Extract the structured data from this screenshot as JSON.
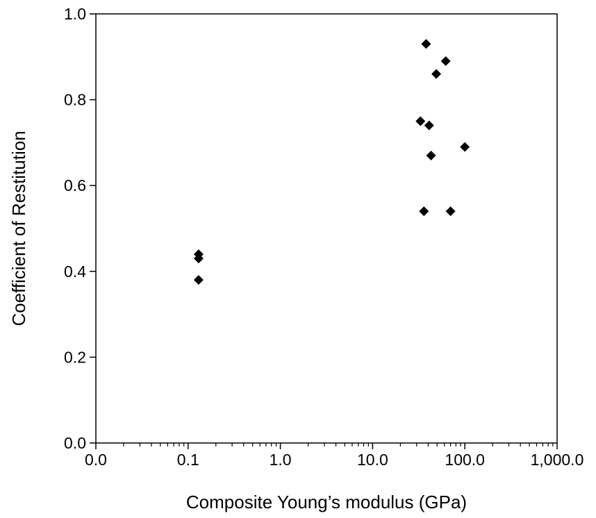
{
  "chart_data": {
    "type": "scatter",
    "title": "",
    "xlabel": "Composite Young’s modulus (GPa)",
    "ylabel": "Coefficient of Restitution",
    "x_scale": "log",
    "xlim": [
      0.01,
      1000
    ],
    "ylim": [
      0.0,
      1.0
    ],
    "x_tick_values": [
      0.01,
      0.1,
      1,
      10,
      100,
      1000
    ],
    "x_tick_labels": [
      "0.0",
      "0.1",
      "1.0",
      "10.0",
      "100.0",
      "1,000.0"
    ],
    "y_tick_values": [
      0.0,
      0.2,
      0.4,
      0.6,
      0.8,
      1.0
    ],
    "y_tick_labels": [
      "0.0",
      "0.2",
      "0.4",
      "0.6",
      "0.8",
      "1.0"
    ],
    "grid": false,
    "legend": "none",
    "marker": "diamond",
    "marker_color": "#000000",
    "series": [
      {
        "x": [
          0.13,
          0.13,
          0.13,
          33,
          38,
          41,
          43,
          49,
          62,
          36,
          70,
          100
        ],
        "y": [
          0.44,
          0.43,
          0.38,
          0.75,
          0.93,
          0.74,
          0.67,
          0.86,
          0.89,
          0.54,
          0.54,
          0.69
        ]
      }
    ]
  }
}
